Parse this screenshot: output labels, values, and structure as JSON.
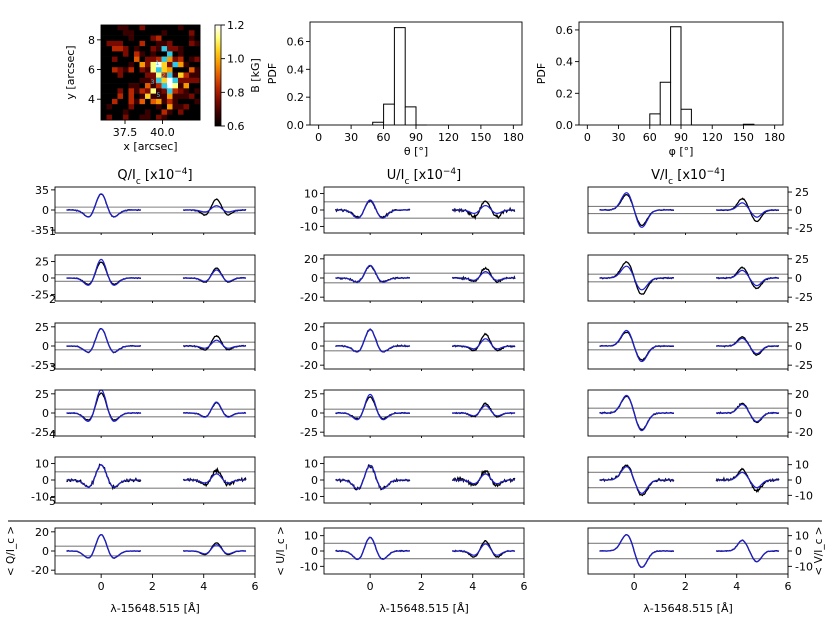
{
  "figure": {
    "colors": {
      "observed": "#000000",
      "fit": "#1f1fd6",
      "reference": "#808080",
      "frame": "#000000"
    }
  },
  "chart_data": [
    {
      "id": "map",
      "type": "heatmap",
      "xlabel": "x [arcsec]",
      "ylabel": "y [arcsec]",
      "xticks": [
        "37.5",
        "40.0"
      ],
      "yticks": [
        "4",
        "6",
        "8"
      ],
      "xlim": [
        35.9,
        42.5
      ],
      "ylim": [
        2.6,
        9.0
      ],
      "colorbar": {
        "label": "B [kG]",
        "range": [
          0.6,
          1.2
        ],
        "ticks": [
          "0.6",
          "0.8",
          "1.0",
          "1.2"
        ]
      },
      "cmap": [
        "#000000",
        "#3a0000",
        "#7a0a00",
        "#b82600",
        "#e35a00",
        "#f79a00",
        "#ffd21e",
        "#ffff80",
        "#ffffff"
      ],
      "annotation_color": "#2fc9e8",
      "annotations": [
        "1",
        "2",
        "3",
        "4",
        "5"
      ]
    },
    {
      "id": "hist-theta",
      "type": "bar",
      "xlabel": "θ [°]",
      "ylabel": "PDF",
      "xticks": [
        "0",
        "30",
        "60",
        "90",
        "120",
        "150",
        "180"
      ],
      "yticks": [
        "0.0",
        "0.2",
        "0.4",
        "0.6"
      ],
      "xlim": [
        -8,
        188
      ],
      "ylim": [
        0,
        0.74
      ],
      "bin_edges": [
        50,
        60,
        70,
        80,
        90,
        100
      ],
      "values": [
        0.02,
        0.15,
        0.7,
        0.13,
        0.0
      ]
    },
    {
      "id": "hist-phi",
      "type": "bar",
      "xlabel": "φ [°]",
      "ylabel": "PDF",
      "xticks": [
        "0",
        "30",
        "60",
        "90",
        "120",
        "150",
        "180"
      ],
      "yticks": [
        "0.0",
        "0.2",
        "0.4",
        "0.6"
      ],
      "xlim": [
        -8,
        188
      ],
      "ylim": [
        0,
        0.65
      ],
      "bin_edges": [
        60,
        70,
        80,
        90,
        100,
        150,
        160
      ],
      "values": [
        0.07,
        0.27,
        0.62,
        0.1,
        0.0,
        0.005
      ]
    },
    {
      "id": "profiles",
      "type": "line",
      "columns": [
        {
          "title": "Q/I_c [x10^-4]",
          "title_main": "Q/I",
          "title_sub": "c",
          "title_rest": " [x10",
          "title_sup": "−4",
          "title_end": "]",
          "ticks_side": "left"
        },
        {
          "title": "U/I_c [x10^-4]",
          "title_main": "U/I",
          "title_sub": "c",
          "title_rest": " [x10",
          "title_sup": "−4",
          "title_end": "]",
          "ticks_side": "left"
        },
        {
          "title": "V/I_c [x10^-4]",
          "title_main": "V/I",
          "title_sub": "c",
          "title_rest": " [x10",
          "title_sup": "−4",
          "title_end": "]",
          "ticks_side": "right"
        }
      ],
      "xlim": [
        -1.8,
        6.0
      ],
      "xticks": [
        "0",
        "2",
        "4",
        "6"
      ],
      "xlabel": "λ-15648.515 [Å]",
      "row_labels": [
        "1",
        "2",
        "3",
        "4",
        "5"
      ],
      "avg_ylabels": [
        "< Q/I_c >",
        "< U/I_c >",
        "< V/I_c >"
      ],
      "line_centers": [
        0.0,
        4.5
      ],
      "rows": [
        [
          {
            "ylim": [
              -40,
              40
            ],
            "yticks": [
              "-35",
              "0",
              "35"
            ],
            "ref": [
              5,
              -5
            ],
            "type": "sym",
            "obs": [
              33,
              20
            ],
            "fit": [
              33,
              8
            ],
            "neg": 0.85,
            "noise": 1.0
          },
          {
            "ylim": [
              -14,
              14
            ],
            "yticks": [
              "-10",
              "0",
              "10"
            ],
            "ref": [
              5,
              -5
            ],
            "type": "sym",
            "obs": [
              7,
              6
            ],
            "fit": [
              8,
              3
            ],
            "neg": 1.35,
            "noise": 0.9
          },
          {
            "ylim": [
              -32,
              32
            ],
            "yticks": [
              "-25",
              "0",
              "25"
            ],
            "ref": [
              5,
              -5
            ],
            "type": "anti",
            "obs": [
              22,
              16
            ],
            "fit": [
              25,
              10
            ],
            "noise": 0.8
          }
        ],
        [
          {
            "ylim": [
              -35,
              35
            ],
            "yticks": [
              "-25",
              "0",
              "25"
            ],
            "ref": [
              5,
              -5
            ],
            "type": "sym",
            "obs": [
              28,
              16
            ],
            "fit": [
              33,
              13
            ],
            "neg": 0.8,
            "noise": 0.8
          },
          {
            "ylim": [
              -24,
              24
            ],
            "yticks": [
              "-20",
              "0",
              "20"
            ],
            "ref": [
              5,
              -5
            ],
            "type": "sym",
            "obs": [
              14,
              11
            ],
            "fit": [
              15,
              7
            ],
            "neg": 0.7,
            "noise": 1.2
          },
          {
            "ylim": [
              -30,
              30
            ],
            "yticks": [
              "-25",
              "0",
              "25"
            ],
            "ref": [
              5,
              -5
            ],
            "type": "anti",
            "obs": [
              22,
              14
            ],
            "fit": [
              16,
              10
            ],
            "noise": 1.0
          }
        ],
        [
          {
            "ylim": [
              -30,
              30
            ],
            "yticks": [
              "-25",
              "0",
              "25"
            ],
            "ref": [
              5,
              -5
            ],
            "type": "sym",
            "obs": [
              26,
              14
            ],
            "fit": [
              26,
              8
            ],
            "neg": 0.75,
            "noise": 0.8
          },
          {
            "ylim": [
              -24,
              24
            ],
            "yticks": [
              "-20",
              "0",
              "20"
            ],
            "ref": [
              5,
              -5
            ],
            "type": "sym",
            "obs": [
              20,
              13
            ],
            "fit": [
              20,
              8
            ],
            "neg": 0.75,
            "noise": 1.0
          },
          {
            "ylim": [
              -30,
              30
            ],
            "yticks": [
              "-25",
              "0",
              "25"
            ],
            "ref": [
              5,
              -5
            ],
            "type": "anti",
            "obs": [
              19,
              12
            ],
            "fit": [
              21,
              10
            ],
            "noise": 0.9
          }
        ],
        [
          {
            "ylim": [
              -30,
              30
            ],
            "yticks": [
              "-25",
              "0",
              "25"
            ],
            "ref": [
              5,
              -5
            ],
            "type": "sym",
            "obs": [
              30,
              14
            ],
            "fit": [
              35,
              15
            ],
            "neg": 0.75,
            "noise": 0.8
          },
          {
            "ylim": [
              -30,
              30
            ],
            "yticks": [
              "-25",
              "0",
              "25"
            ],
            "ref": [
              5,
              -5
            ],
            "type": "sym",
            "obs": [
              24,
              13
            ],
            "fit": [
              28,
              10
            ],
            "neg": 0.75,
            "noise": 0.9
          },
          {
            "ylim": [
              -24,
              24
            ],
            "yticks": [
              "-20",
              "0",
              "20"
            ],
            "ref": [
              5,
              -5
            ],
            "type": "anti",
            "obs": [
              18,
              10
            ],
            "fit": [
              19,
              9
            ],
            "noise": 0.8
          }
        ],
        [
          {
            "ylim": [
              -14,
              14
            ],
            "yticks": [
              "-10",
              "0",
              "10"
            ],
            "ref": [
              5,
              -5
            ],
            "type": "sym",
            "obs": [
              11,
              6
            ],
            "fit": [
              11,
              4
            ],
            "neg": 0.9,
            "noise": 1.2
          },
          {
            "ylim": [
              -14,
              14
            ],
            "yticks": [
              "-10",
              "0",
              "10"
            ],
            "ref": [
              5,
              -5
            ],
            "type": "sym",
            "obs": [
              11,
              6
            ],
            "fit": [
              11,
              4
            ],
            "neg": 1.1,
            "noise": 1.3
          },
          {
            "ylim": [
              -15,
              15
            ],
            "yticks": [
              "-10",
              "0",
              "10"
            ],
            "ref": [
              5,
              -5
            ],
            "type": "anti",
            "obs": [
              10,
              7
            ],
            "fit": [
              9,
              5
            ],
            "noise": 1.0
          }
        ]
      ],
      "average": [
        {
          "ylim": [
            -24,
            24
          ],
          "yticks": [
            "-20",
            "0",
            "20"
          ],
          "ref": [
            5,
            -5
          ],
          "type": "sym",
          "obs": [
            20,
            9
          ],
          "fit": [
            20,
            7
          ],
          "neg": 0.85,
          "noise": 0.4
        },
        {
          "ylim": [
            -15,
            15
          ],
          "yticks": [
            "-10",
            "0",
            "10"
          ],
          "ref": [
            5,
            -5
          ],
          "type": "sym",
          "obs": [
            11,
            7
          ],
          "fit": [
            11,
            5
          ],
          "neg": 1.1,
          "noise": 0.4
        },
        {
          "ylim": [
            -15,
            15
          ],
          "yticks": [
            "-10",
            "0",
            "10"
          ],
          "ref": [
            5,
            -5
          ],
          "type": "anti",
          "obs": [
            11,
            7
          ],
          "fit": [
            11,
            7
          ],
          "noise": 0.3
        }
      ]
    }
  ]
}
